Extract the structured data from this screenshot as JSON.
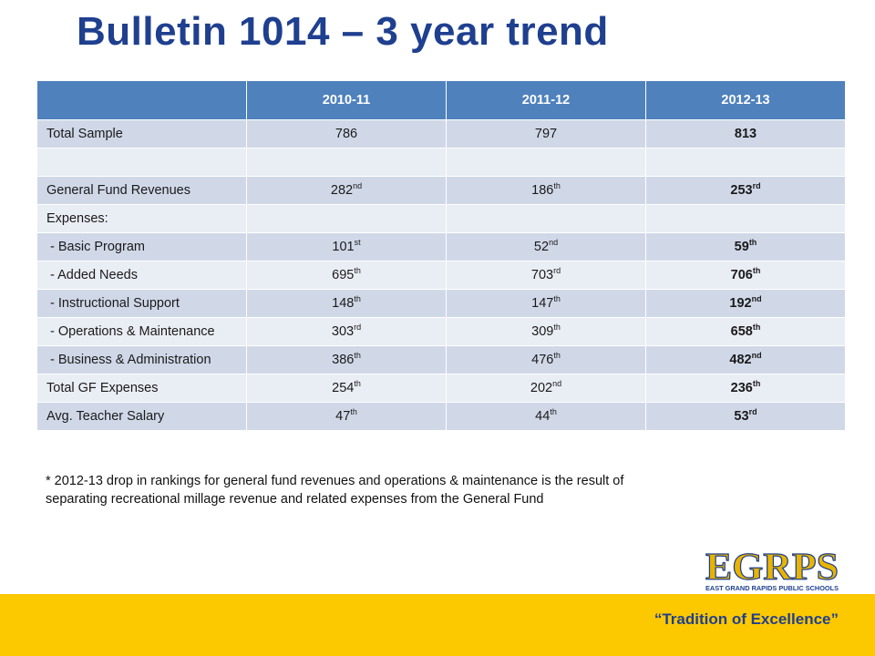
{
  "title": "Bulletin 1014 – 3 year trend",
  "table": {
    "headers": [
      "",
      "2010-11",
      "2011-12",
      "2012-13"
    ],
    "rows": [
      {
        "label": "Total Sample",
        "cells": [
          {
            "n": "786",
            "s": ""
          },
          {
            "n": "797",
            "s": ""
          },
          {
            "n": "813",
            "s": ""
          }
        ]
      },
      {
        "label": "",
        "cells": [
          {
            "n": "",
            "s": ""
          },
          {
            "n": "",
            "s": ""
          },
          {
            "n": "",
            "s": ""
          }
        ]
      },
      {
        "label": "General Fund Revenues",
        "cells": [
          {
            "n": "282",
            "s": "nd"
          },
          {
            "n": "186",
            "s": "th"
          },
          {
            "n": "253",
            "s": "rd"
          }
        ]
      },
      {
        "label": "Expenses:",
        "cells": [
          {
            "n": "",
            "s": ""
          },
          {
            "n": "",
            "s": ""
          },
          {
            "n": "",
            "s": ""
          }
        ]
      },
      {
        "label": " - Basic Program",
        "cells": [
          {
            "n": "101",
            "s": "st"
          },
          {
            "n": "52",
            "s": "nd"
          },
          {
            "n": "59",
            "s": "th"
          }
        ]
      },
      {
        "label": " - Added Needs",
        "cells": [
          {
            "n": "695",
            "s": "th"
          },
          {
            "n": "703",
            "s": "rd"
          },
          {
            "n": "706",
            "s": "th"
          }
        ]
      },
      {
        "label": " - Instructional Support",
        "cells": [
          {
            "n": "148",
            "s": "th"
          },
          {
            "n": "147",
            "s": "th"
          },
          {
            "n": "192",
            "s": "nd"
          }
        ]
      },
      {
        "label": " - Operations & Maintenance",
        "cells": [
          {
            "n": "303",
            "s": "rd"
          },
          {
            "n": "309",
            "s": "th"
          },
          {
            "n": "658",
            "s": "th"
          }
        ]
      },
      {
        "label": " - Business & Administration",
        "cells": [
          {
            "n": "386",
            "s": "th"
          },
          {
            "n": "476",
            "s": "th"
          },
          {
            "n": "482",
            "s": "nd"
          }
        ]
      },
      {
        "label": "Total GF Expenses",
        "cells": [
          {
            "n": "254",
            "s": "th"
          },
          {
            "n": "202",
            "s": "nd"
          },
          {
            "n": "236",
            "s": "th"
          }
        ]
      },
      {
        "label": "Avg. Teacher Salary",
        "cells": [
          {
            "n": "47",
            "s": "th"
          },
          {
            "n": "44",
            "s": "th"
          },
          {
            "n": "53",
            "s": "rd"
          }
        ]
      }
    ]
  },
  "note": "* 2012-13 drop in rankings for general fund revenues and operations & maintenance is the result of separating recreational millage revenue and related expenses from the General Fund",
  "logo": {
    "main": "EGRPS",
    "sub": "EAST GRAND RAPIDS PUBLIC SCHOOLS"
  },
  "footer": {
    "tagline": "“Tradition of Excellence”"
  },
  "colors": {
    "title": "#1f3f8f",
    "header": "#4f81bd",
    "row_dark": "#d0d8e8",
    "row_light": "#e9edf4",
    "footer": "#fcc800",
    "logo_gold": "#e8b400"
  }
}
